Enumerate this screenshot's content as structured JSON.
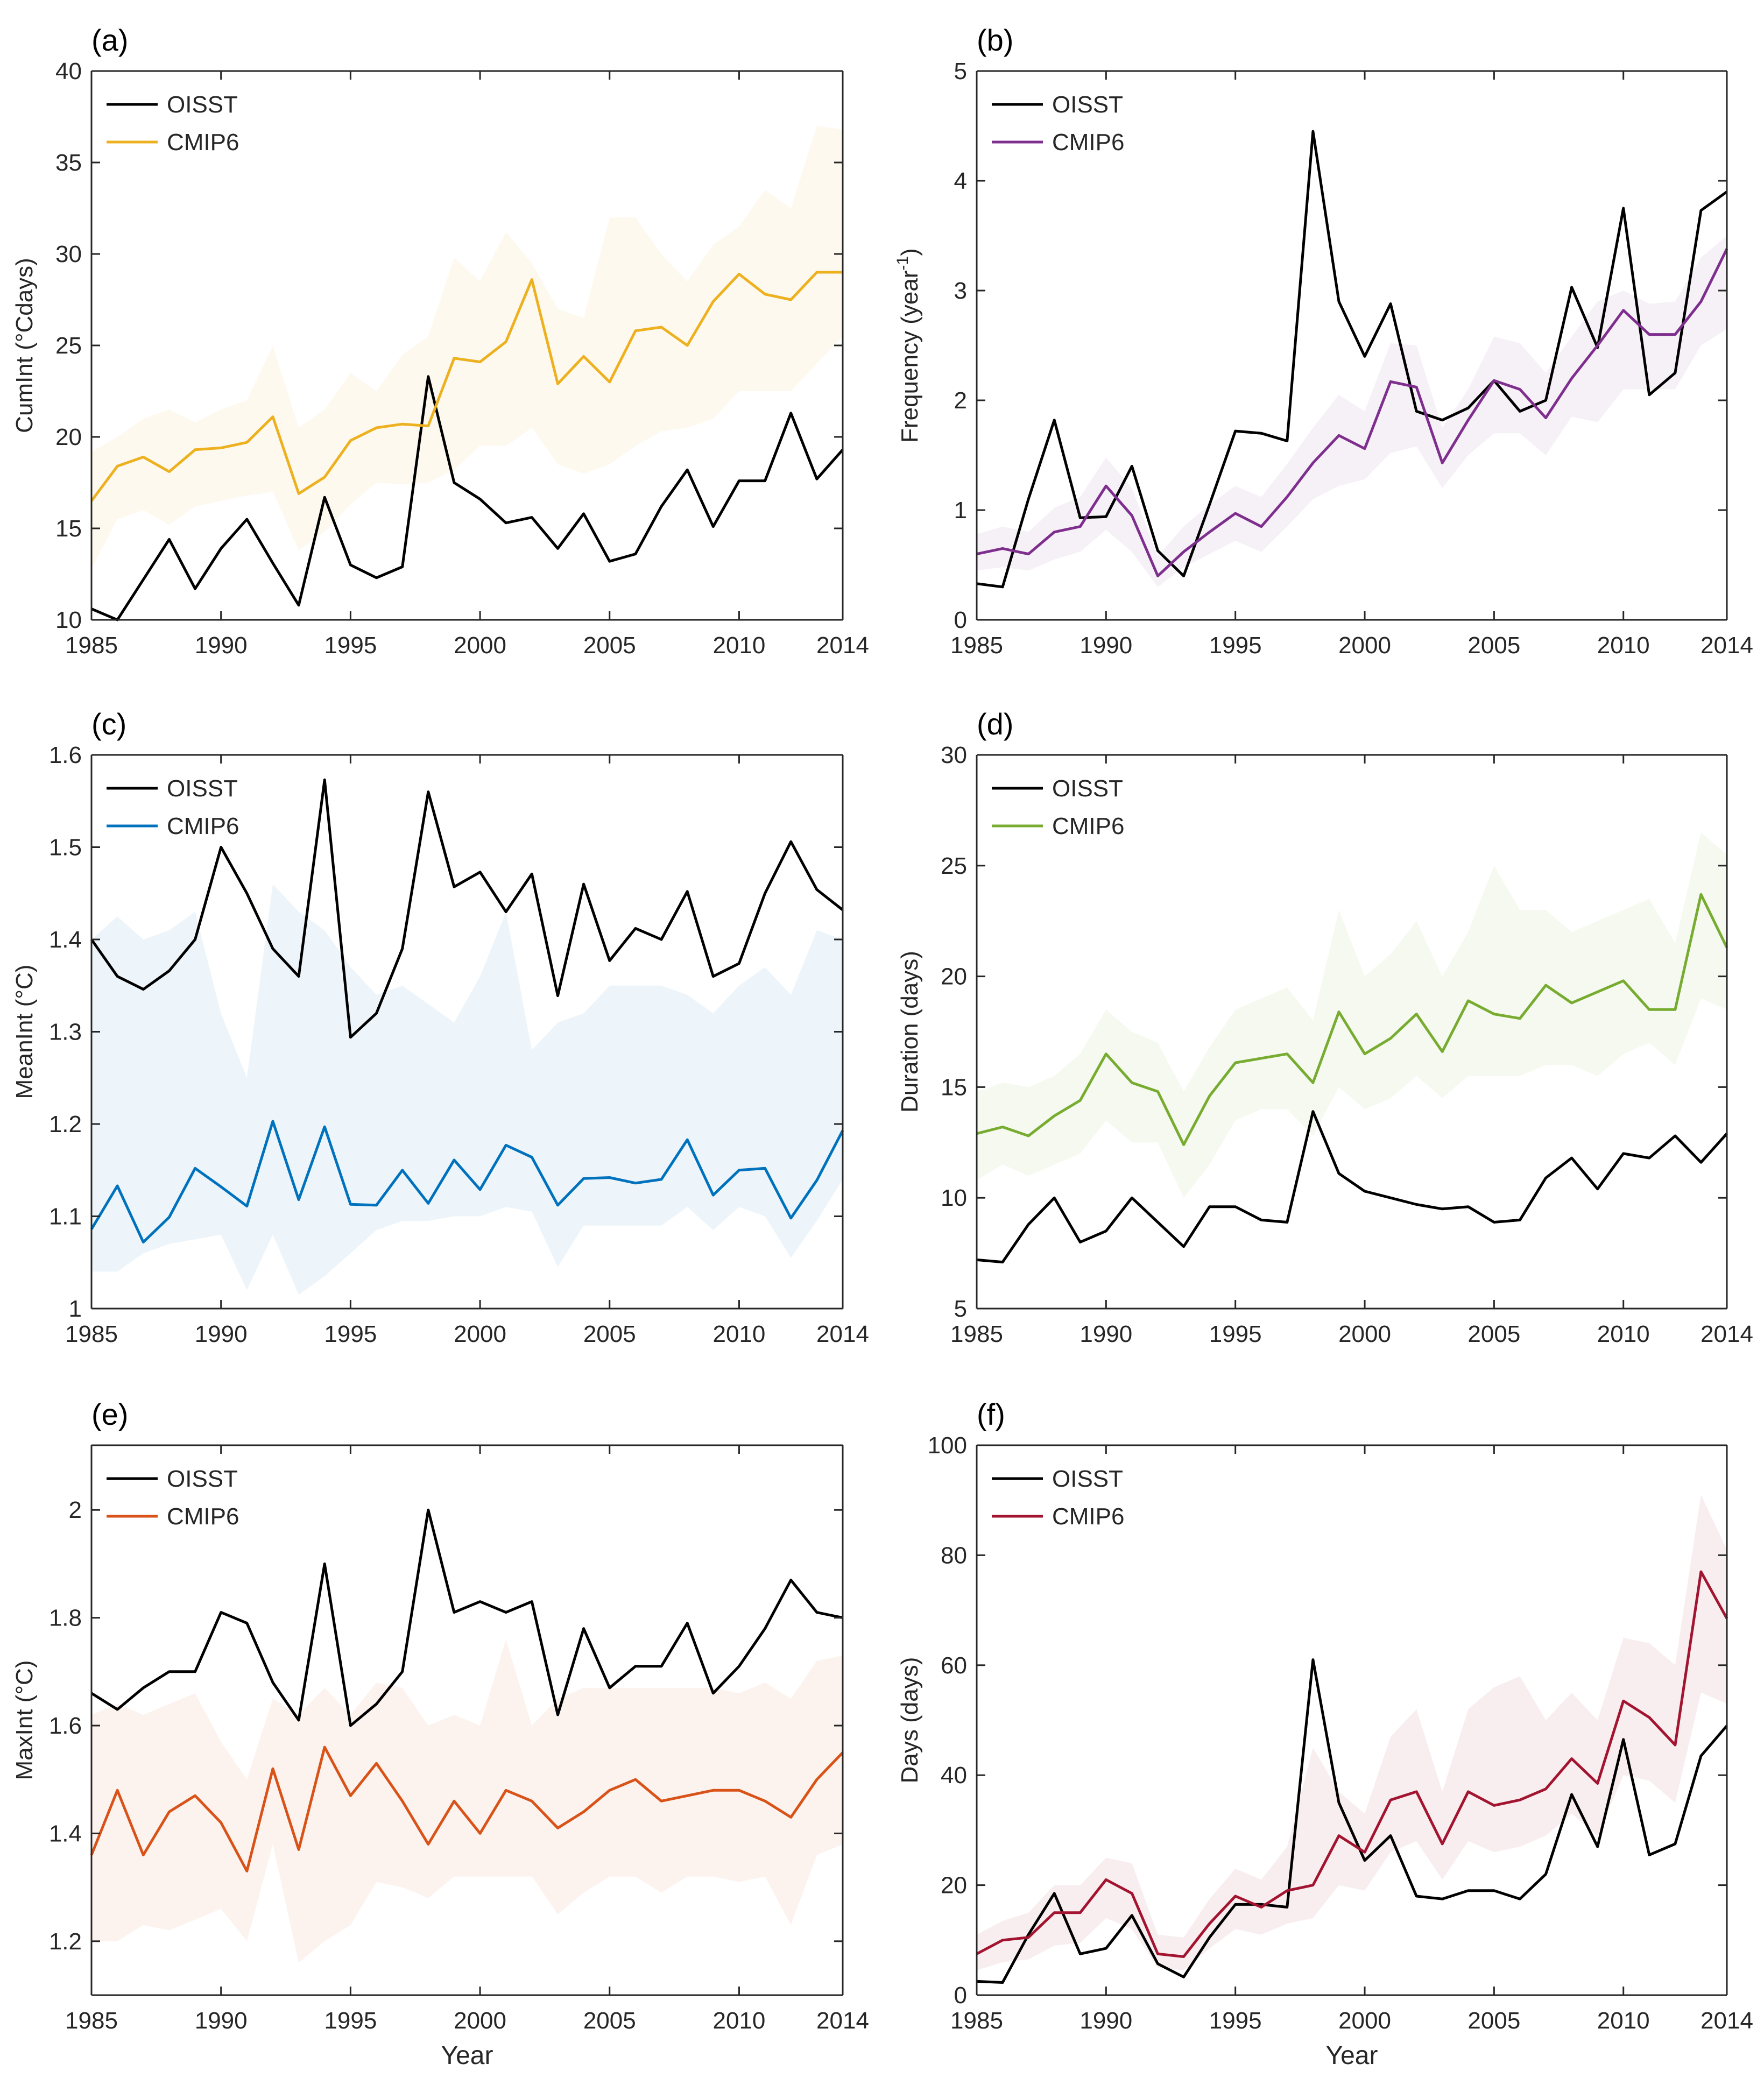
{
  "figure": {
    "xlabel": "Year",
    "legend_obs": "OISST",
    "legend_model": "CMIP6"
  },
  "chart_data": [
    {
      "type": "line",
      "panel": "(a)",
      "ylabel": "CumInt (°Cdays)",
      "xlim": [
        1985,
        2014
      ],
      "xticks": [
        1985,
        1990,
        1995,
        2000,
        2005,
        2010,
        2014
      ],
      "ylim": [
        10,
        40
      ],
      "yticks": [
        10,
        15,
        20,
        25,
        30,
        35,
        40
      ],
      "color": "#EDB120",
      "x": [
        1985,
        1986,
        1987,
        1988,
        1989,
        1990,
        1991,
        1992,
        1993,
        1994,
        1995,
        1996,
        1997,
        1998,
        1999,
        2000,
        2001,
        2002,
        2003,
        2004,
        2005,
        2006,
        2007,
        2008,
        2009,
        2010,
        2011,
        2012,
        2013,
        2014
      ],
      "series": [
        {
          "name": "OISST",
          "values": [
            10.6,
            10.0,
            12.2,
            14.4,
            11.7,
            13.9,
            15.5,
            13.1,
            10.8,
            16.7,
            13.0,
            12.3,
            12.9,
            23.3,
            17.5,
            16.6,
            15.3,
            15.6,
            13.9,
            15.8,
            13.2,
            13.6,
            16.2,
            18.2,
            15.1,
            17.6,
            17.6,
            21.3,
            17.7,
            19.3
          ]
        },
        {
          "name": "CMIP6",
          "values": [
            16.5,
            18.4,
            18.9,
            18.1,
            19.3,
            19.4,
            19.7,
            21.1,
            16.9,
            17.8,
            19.8,
            20.5,
            20.7,
            20.6,
            24.3,
            24.1,
            25.2,
            28.6,
            22.9,
            24.4,
            23.0,
            25.8,
            26.0,
            25.0,
            27.4,
            28.9,
            27.8,
            27.5,
            29.0,
            29.0
          ]
        }
      ],
      "band_low": [
        12.8,
        15.5,
        16.0,
        15.2,
        16.2,
        16.5,
        16.8,
        17.0,
        13.8,
        14.8,
        16.3,
        17.5,
        17.4,
        17.5,
        18.2,
        19.5,
        19.5,
        20.5,
        18.5,
        18.0,
        18.5,
        19.5,
        20.3,
        20.5,
        21.0,
        22.5,
        22.5,
        22.5,
        24.0,
        25.5
      ],
      "band_high": [
        19.2,
        20.0,
        21.0,
        21.5,
        20.8,
        21.5,
        22.0,
        25.0,
        20.5,
        21.5,
        23.5,
        22.5,
        24.5,
        25.5,
        29.8,
        28.5,
        31.2,
        29.5,
        27.0,
        26.5,
        32.0,
        32.0,
        30.0,
        28.5,
        30.5,
        31.5,
        33.5,
        32.5,
        37.0,
        36.8
      ]
    },
    {
      "type": "line",
      "panel": "(b)",
      "ylabel": "Frequency (year",
      "ylabel_sup": "-1",
      "ylabel_end": ")",
      "xlim": [
        1985,
        2014
      ],
      "xticks": [
        1985,
        1990,
        1995,
        2000,
        2005,
        2010,
        2014
      ],
      "ylim": [
        0,
        5
      ],
      "yticks": [
        0,
        1,
        2,
        3,
        4,
        5
      ],
      "color": "#7E2F8E",
      "x": [
        1985,
        1986,
        1987,
        1988,
        1989,
        1990,
        1991,
        1992,
        1993,
        1994,
        1995,
        1996,
        1997,
        1998,
        1999,
        2000,
        2001,
        2002,
        2003,
        2004,
        2005,
        2006,
        2007,
        2008,
        2009,
        2010,
        2011,
        2012,
        2013,
        2014
      ],
      "series": [
        {
          "name": "OISST",
          "values": [
            0.33,
            0.3,
            1.1,
            1.82,
            0.93,
            0.94,
            1.4,
            0.63,
            0.4,
            1.05,
            1.72,
            1.7,
            1.63,
            4.45,
            2.9,
            2.4,
            2.88,
            1.9,
            1.82,
            1.93,
            2.18,
            1.9,
            2.0,
            3.03,
            2.48,
            3.75,
            2.05,
            2.25,
            3.73,
            3.9
          ]
        },
        {
          "name": "CMIP6",
          "values": [
            0.6,
            0.65,
            0.6,
            0.8,
            0.85,
            1.22,
            0.95,
            0.4,
            0.62,
            0.8,
            0.97,
            0.85,
            1.12,
            1.43,
            1.68,
            1.56,
            2.17,
            2.12,
            1.43,
            1.82,
            2.18,
            2.1,
            1.84,
            2.2,
            2.5,
            2.82,
            2.6,
            2.6,
            2.9,
            3.38
          ]
        }
      ],
      "band_low": [
        0.45,
        0.48,
        0.45,
        0.55,
        0.62,
        0.82,
        0.62,
        0.3,
        0.48,
        0.6,
        0.72,
        0.62,
        0.85,
        1.1,
        1.22,
        1.28,
        1.52,
        1.58,
        1.2,
        1.5,
        1.7,
        1.7,
        1.5,
        1.85,
        1.8,
        2.1,
        2.1,
        2.1,
        2.5,
        2.65
      ],
      "band_high": [
        0.78,
        0.85,
        0.8,
        1.02,
        1.12,
        1.48,
        1.2,
        0.58,
        0.85,
        1.05,
        1.22,
        1.12,
        1.42,
        1.75,
        2.05,
        1.9,
        2.52,
        2.5,
        1.75,
        2.1,
        2.58,
        2.52,
        2.25,
        2.58,
        2.9,
        3.0,
        2.88,
        2.9,
        3.3,
        3.5
      ]
    },
    {
      "type": "line",
      "panel": "(c)",
      "ylabel": "MeanInt (°C)",
      "xlim": [
        1985,
        2014
      ],
      "xticks": [
        1985,
        1990,
        1995,
        2000,
        2005,
        2010,
        2014
      ],
      "ylim": [
        1.0,
        1.6
      ],
      "yticks": [
        1,
        1.1,
        1.2,
        1.3,
        1.4,
        1.5,
        1.6
      ],
      "color": "#0072BD",
      "x": [
        1985,
        1986,
        1987,
        1988,
        1989,
        1990,
        1991,
        1992,
        1993,
        1994,
        1995,
        1996,
        1997,
        1998,
        1999,
        2000,
        2001,
        2002,
        2003,
        2004,
        2005,
        2006,
        2007,
        2008,
        2009,
        2010,
        2011,
        2012,
        2013,
        2014
      ],
      "series": [
        {
          "name": "OISST",
          "values": [
            1.4,
            1.36,
            1.346,
            1.366,
            1.4,
            1.5,
            1.45,
            1.39,
            1.36,
            1.573,
            1.294,
            1.32,
            1.39,
            1.56,
            1.457,
            1.473,
            1.43,
            1.471,
            1.339,
            1.46,
            1.377,
            1.412,
            1.4,
            1.452,
            1.36,
            1.374,
            1.45,
            1.506,
            1.454,
            1.432
          ]
        },
        {
          "name": "CMIP6",
          "values": [
            1.086,
            1.133,
            1.072,
            1.099,
            1.152,
            1.132,
            1.111,
            1.203,
            1.118,
            1.197,
            1.113,
            1.112,
            1.15,
            1.114,
            1.161,
            1.129,
            1.177,
            1.164,
            1.112,
            1.141,
            1.142,
            1.136,
            1.14,
            1.183,
            1.123,
            1.15,
            1.152,
            1.098,
            1.139,
            1.193
          ]
        }
      ],
      "band_low": [
        1.04,
        1.04,
        1.06,
        1.07,
        1.075,
        1.08,
        1.02,
        1.08,
        1.015,
        1.035,
        1.06,
        1.085,
        1.095,
        1.095,
        1.1,
        1.1,
        1.11,
        1.105,
        1.045,
        1.09,
        1.09,
        1.09,
        1.09,
        1.11,
        1.085,
        1.11,
        1.1,
        1.055,
        1.095,
        1.14
      ],
      "band_high": [
        1.4,
        1.425,
        1.4,
        1.41,
        1.43,
        1.32,
        1.25,
        1.46,
        1.43,
        1.41,
        1.37,
        1.34,
        1.35,
        1.33,
        1.31,
        1.36,
        1.43,
        1.28,
        1.31,
        1.32,
        1.35,
        1.35,
        1.35,
        1.34,
        1.32,
        1.35,
        1.37,
        1.34,
        1.41,
        1.4
      ]
    },
    {
      "type": "line",
      "panel": "(d)",
      "ylabel": "Duration (days)",
      "xlim": [
        1985,
        2014
      ],
      "xticks": [
        1985,
        1990,
        1995,
        2000,
        2005,
        2010,
        2014
      ],
      "ylim": [
        5,
        30
      ],
      "yticks": [
        5,
        10,
        15,
        20,
        25,
        30
      ],
      "color": "#77AC30",
      "x": [
        1985,
        1986,
        1987,
        1988,
        1989,
        1990,
        1991,
        1992,
        1993,
        1994,
        1995,
        1996,
        1997,
        1998,
        1999,
        2000,
        2001,
        2002,
        2003,
        2004,
        2005,
        2006,
        2007,
        2008,
        2009,
        2010,
        2011,
        2012,
        2013,
        2014
      ],
      "series": [
        {
          "name": "OISST",
          "values": [
            7.2,
            7.1,
            8.8,
            10.0,
            8.0,
            8.5,
            10.0,
            8.9,
            7.8,
            9.6,
            9.6,
            9.0,
            8.9,
            13.9,
            11.1,
            10.3,
            10.0,
            9.7,
            9.5,
            9.6,
            8.9,
            9.0,
            10.9,
            11.8,
            10.4,
            12.0,
            11.8,
            12.8,
            11.6,
            12.9
          ]
        },
        {
          "name": "CMIP6",
          "values": [
            12.9,
            13.2,
            12.8,
            13.7,
            14.4,
            16.5,
            15.2,
            14.8,
            12.4,
            14.6,
            16.1,
            16.3,
            16.5,
            15.2,
            18.4,
            16.5,
            17.2,
            18.3,
            16.6,
            18.9,
            18.3,
            18.1,
            19.6,
            18.8,
            19.3,
            19.8,
            18.5,
            18.5,
            23.7,
            21.3
          ]
        }
      ],
      "band_low": [
        10.8,
        11.5,
        11.0,
        11.5,
        12.0,
        13.5,
        12.5,
        12.5,
        10.0,
        11.5,
        13.5,
        14.0,
        14.0,
        12.8,
        15.0,
        14.0,
        14.5,
        15.5,
        14.5,
        15.5,
        15.5,
        15.5,
        16.0,
        16.0,
        15.5,
        16.5,
        17.0,
        16.0,
        19.0,
        18.5
      ],
      "band_high": [
        14.8,
        15.2,
        15.0,
        15.5,
        16.5,
        18.5,
        17.5,
        17.0,
        14.8,
        16.8,
        18.5,
        19.0,
        19.5,
        18.0,
        23.0,
        20.0,
        21.0,
        22.5,
        20.0,
        22.0,
        25.0,
        23.0,
        23.0,
        22.0,
        22.5,
        23.0,
        23.5,
        21.5,
        26.5,
        25.5
      ]
    },
    {
      "type": "line",
      "panel": "(e)",
      "ylabel": "MaxInt (°C)",
      "xlim": [
        1985,
        2014
      ],
      "xticks": [
        1985,
        1990,
        1995,
        2000,
        2005,
        2010,
        2014
      ],
      "ylim": [
        1.1,
        2.12
      ],
      "yticks": [
        1.2,
        1.4,
        1.6,
        1.8,
        2
      ],
      "color": "#D95319",
      "x": [
        1985,
        1986,
        1987,
        1988,
        1989,
        1990,
        1991,
        1992,
        1993,
        1994,
        1995,
        1996,
        1997,
        1998,
        1999,
        2000,
        2001,
        2002,
        2003,
        2004,
        2005,
        2006,
        2007,
        2008,
        2009,
        2010,
        2011,
        2012,
        2013,
        2014
      ],
      "series": [
        {
          "name": "OISST",
          "values": [
            1.66,
            1.63,
            1.67,
            1.7,
            1.7,
            1.81,
            1.79,
            1.68,
            1.61,
            1.9,
            1.6,
            1.64,
            1.7,
            2.0,
            1.81,
            1.83,
            1.81,
            1.83,
            1.62,
            1.78,
            1.67,
            1.71,
            1.71,
            1.79,
            1.66,
            1.71,
            1.78,
            1.87,
            1.81,
            1.8
          ]
        },
        {
          "name": "CMIP6",
          "values": [
            1.36,
            1.48,
            1.36,
            1.44,
            1.47,
            1.42,
            1.33,
            1.52,
            1.37,
            1.56,
            1.47,
            1.53,
            1.46,
            1.38,
            1.46,
            1.4,
            1.48,
            1.46,
            1.41,
            1.44,
            1.48,
            1.5,
            1.46,
            1.47,
            1.48,
            1.48,
            1.46,
            1.43,
            1.5,
            1.55
          ]
        }
      ],
      "band_low": [
        1.2,
        1.2,
        1.23,
        1.22,
        1.24,
        1.26,
        1.2,
        1.38,
        1.16,
        1.2,
        1.23,
        1.31,
        1.3,
        1.28,
        1.32,
        1.32,
        1.32,
        1.32,
        1.25,
        1.29,
        1.32,
        1.32,
        1.29,
        1.32,
        1.32,
        1.31,
        1.32,
        1.23,
        1.36,
        1.38
      ],
      "band_high": [
        1.62,
        1.64,
        1.62,
        1.64,
        1.66,
        1.57,
        1.5,
        1.65,
        1.62,
        1.67,
        1.62,
        1.68,
        1.67,
        1.6,
        1.62,
        1.6,
        1.76,
        1.6,
        1.65,
        1.67,
        1.67,
        1.67,
        1.67,
        1.67,
        1.67,
        1.66,
        1.68,
        1.65,
        1.72,
        1.73
      ]
    },
    {
      "type": "line",
      "panel": "(f)",
      "ylabel": "Days (days)",
      "xlim": [
        1985,
        2014
      ],
      "xticks": [
        1985,
        1990,
        1995,
        2000,
        2005,
        2010,
        2014
      ],
      "ylim": [
        0,
        100
      ],
      "yticks": [
        0,
        20,
        40,
        60,
        80,
        100
      ],
      "color": "#A2142F",
      "x": [
        1985,
        1986,
        1987,
        1988,
        1989,
        1990,
        1991,
        1992,
        1993,
        1994,
        1995,
        1996,
        1997,
        1998,
        1999,
        2000,
        2001,
        2002,
        2003,
        2004,
        2005,
        2006,
        2007,
        2008,
        2009,
        2010,
        2011,
        2012,
        2013,
        2014
      ],
      "series": [
        {
          "name": "OISST",
          "values": [
            2.5,
            2.3,
            11.0,
            18.5,
            7.5,
            8.5,
            14.5,
            5.7,
            3.3,
            10.5,
            16.5,
            16.5,
            16.0,
            61.0,
            35.0,
            24.5,
            29.0,
            18.0,
            17.5,
            19.0,
            19.0,
            17.5,
            22.0,
            36.5,
            27.0,
            46.5,
            25.5,
            27.5,
            43.5,
            49.0
          ]
        },
        {
          "name": "CMIP6",
          "values": [
            7.5,
            10.0,
            10.5,
            15.0,
            15.0,
            21.0,
            18.5,
            7.5,
            7.0,
            13.0,
            18.0,
            16.0,
            19.0,
            20.0,
            29.0,
            26.0,
            35.5,
            37.0,
            27.5,
            37.0,
            34.5,
            35.5,
            37.5,
            43.0,
            38.5,
            53.5,
            50.5,
            45.5,
            77.0,
            68.5
          ]
        }
      ],
      "band_low": [
        4.5,
        6.0,
        6.5,
        9.0,
        9.5,
        14.0,
        12.0,
        5.0,
        4.5,
        8.5,
        12.0,
        11.0,
        13.0,
        14.0,
        20.0,
        19.0,
        26.0,
        28.0,
        21.0,
        28.0,
        26.0,
        27.0,
        29.0,
        33.0,
        29.0,
        40.0,
        39.0,
        35.0,
        55.0,
        53.0
      ],
      "band_high": [
        11.0,
        13.5,
        15.0,
        20.0,
        20.0,
        25.0,
        24.0,
        11.0,
        10.5,
        17.5,
        23.0,
        21.0,
        27.0,
        45.0,
        37.0,
        33.0,
        47.0,
        52.0,
        37.0,
        52.0,
        56.0,
        58.0,
        50.0,
        55.0,
        50.0,
        65.0,
        64.0,
        60.0,
        91.0,
        81.0
      ]
    }
  ]
}
